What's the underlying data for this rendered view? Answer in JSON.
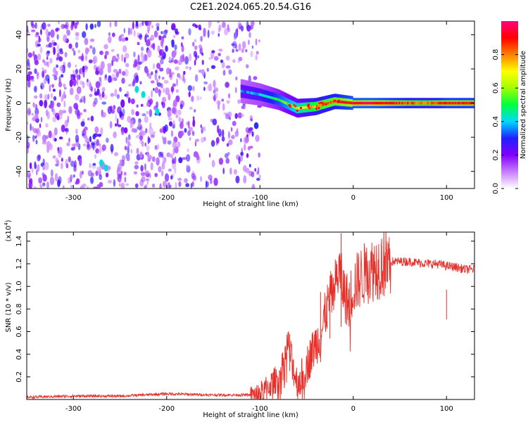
{
  "chart_data": [
    {
      "type": "heatmap",
      "title": "C2E1.2024.065.20.54.G16",
      "xlabel": "Height of straight line (km)",
      "ylabel": "Frequency (Hz)",
      "xlim": [
        -350,
        130
      ],
      "ylim": [
        -50,
        48
      ],
      "xticks": [
        -300,
        -200,
        -100,
        0,
        100
      ],
      "yticks": [
        -40,
        -20,
        0,
        20,
        40
      ],
      "colorbar": {
        "label": "Normalized spectral amplitude",
        "range": [
          0.0,
          1.0
        ],
        "ticks": [
          "0.0",
          "0.2",
          "0.4",
          "0.6",
          "0.8"
        ],
        "colors": [
          "#ffffff",
          "#c87dff",
          "#8000ff",
          "#2020ff",
          "#00d8ff",
          "#00ff40",
          "#a0ff00",
          "#ffff00",
          "#ff8000",
          "#ff0000",
          "#ff0080"
        ]
      },
      "features": {
        "noise_region_x": [
          -350,
          -100
        ],
        "signal_track": {
          "x": [
            -120,
            -100,
            -80,
            -60,
            -40,
            -20,
            0,
            20,
            40,
            60,
            80,
            100,
            130
          ],
          "freq": [
            7,
            5,
            2,
            -3,
            -2,
            1,
            0,
            0,
            0,
            0,
            0,
            0,
            0
          ],
          "amplitude": [
            0.35,
            0.4,
            0.5,
            0.65,
            0.8,
            0.85,
            0.95,
            0.95,
            0.9,
            0.85,
            0.8,
            0.9,
            0.9
          ]
        }
      }
    },
    {
      "type": "line",
      "title": "",
      "xlabel": "Height of straight line (km)",
      "ylabel": "SNR (10 * v/v)",
      "yscale_label": "(x10",
      "yscale_exp": "4",
      "yscale_close": ")",
      "xlim": [
        -350,
        130
      ],
      "ylim": [
        0,
        1.48
      ],
      "xticks": [
        -300,
        -200,
        -100,
        0,
        100
      ],
      "yticks": [
        0.2,
        0.4,
        0.6,
        0.8,
        1.0,
        1.2,
        1.4
      ],
      "series": [
        {
          "color": "#e8302a",
          "x": [
            -350,
            -300,
            -250,
            -200,
            -150,
            -110,
            -100,
            -90,
            -80,
            -75,
            -70,
            -65,
            -60,
            -55,
            -50,
            -45,
            -40,
            -35,
            -30,
            -25,
            -20,
            -15,
            -10,
            -5,
            0,
            10,
            20,
            30,
            40,
            50,
            60,
            70,
            80,
            90,
            100,
            110,
            120,
            130
          ],
          "y": [
            0.02,
            0.03,
            0.03,
            0.05,
            0.04,
            0.04,
            0.06,
            0.12,
            0.2,
            0.3,
            0.5,
            0.3,
            0.15,
            0.2,
            0.3,
            0.4,
            0.5,
            0.55,
            0.75,
            0.9,
            1.0,
            1.15,
            0.95,
            0.85,
            1.0,
            1.1,
            1.15,
            1.2,
            1.22,
            1.22,
            1.22,
            1.21,
            1.2,
            1.2,
            1.18,
            1.17,
            1.15,
            1.15
          ]
        }
      ]
    }
  ]
}
